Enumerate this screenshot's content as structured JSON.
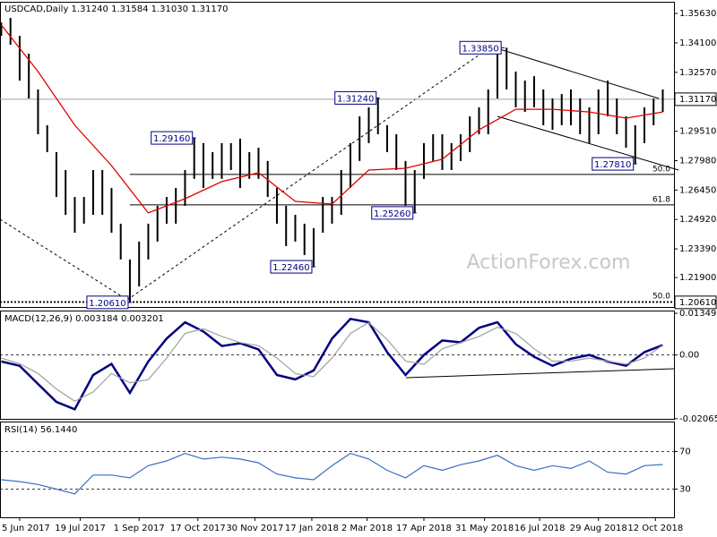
{
  "chart_data": [
    {
      "type": "ohlc",
      "title": "USDCAD,Daily  1.31240 1.31584 1.31030 1.31170",
      "watermark": "ActionForex.com",
      "color": "#000000",
      "x": [
        -10,
        -5,
        0,
        5,
        10,
        15,
        20,
        25,
        30,
        35,
        40,
        45,
        50,
        55,
        60,
        65,
        70,
        75,
        80,
        85,
        90,
        95,
        100,
        105,
        110,
        115,
        120,
        125,
        130,
        135,
        140,
        145,
        150,
        155,
        160,
        165,
        170,
        175,
        180,
        185,
        190,
        195,
        200,
        205,
        210,
        215,
        220,
        225,
        230,
        235,
        240,
        245,
        250,
        255,
        260,
        265,
        270,
        275,
        280,
        285,
        290,
        295,
        300,
        305,
        310,
        315,
        320,
        325,
        330,
        335,
        340,
        345,
        350
      ],
      "high": [
        1.3516,
        1.354,
        1.3447,
        1.3354,
        1.3168,
        1.2982,
        1.2842,
        1.2749,
        1.2609,
        1.2609,
        1.2749,
        1.2749,
        1.2656,
        1.247,
        1.2284,
        1.2377,
        1.247,
        1.2563,
        1.2609,
        1.2656,
        1.2749,
        1.2916,
        1.2889,
        1.2842,
        1.2889,
        1.2889,
        1.2912,
        1.2842,
        1.2865,
        1.2796,
        1.2656,
        1.2563,
        1.2516,
        1.247,
        1.2447,
        1.2609,
        1.2609,
        1.2749,
        1.2889,
        1.3028,
        1.3075,
        1.3124,
        1.2982,
        1.2935,
        1.2796,
        1.2749,
        1.2889,
        1.2935,
        1.2935,
        1.2889,
        1.2935,
        1.3028,
        1.3075,
        1.3168,
        1.3354,
        1.3385,
        1.3261,
        1.3214,
        1.3237,
        1.3168,
        1.3121,
        1.3144,
        1.3168,
        1.3121,
        1.3075,
        1.3168,
        1.3214,
        1.3121,
        1.3028,
        1.2982,
        1.3075,
        1.3121,
        1.3168
      ],
      "low": [
        1.3447,
        1.34,
        1.3214,
        1.3121,
        1.2935,
        1.2842,
        1.2609,
        1.2516,
        1.2423,
        1.247,
        1.2516,
        1.2516,
        1.2423,
        1.2284,
        1.2061,
        1.2144,
        1.2284,
        1.2377,
        1.247,
        1.247,
        1.2563,
        1.2703,
        1.2656,
        1.2703,
        1.2703,
        1.2749,
        1.2656,
        1.2703,
        1.2703,
        1.2609,
        1.247,
        1.2354,
        1.2377,
        1.2307,
        1.2246,
        1.2423,
        1.247,
        1.2516,
        1.2656,
        1.2796,
        1.2889,
        1.2935,
        1.2842,
        1.2749,
        1.2563,
        1.2526,
        1.2703,
        1.2796,
        1.2749,
        1.2749,
        1.2796,
        1.2842,
        1.2935,
        1.2935,
        1.3121,
        1.3168,
        1.3075,
        1.3051,
        1.3075,
        1.2982,
        1.2958,
        1.2982,
        1.2982,
        1.2935,
        1.2889,
        1.2935,
        1.3028,
        1.2935,
        1.2865,
        1.2781,
        1.2889,
        1.2982,
        1.3051
      ],
      "xlim": [
        -10.7,
        356.1
      ],
      "ylim": [
        1.2037,
        1.3619
      ],
      "yticks": [
        {
          "value": 1.3563,
          "label": "1.35630"
        },
        {
          "value": 1.341,
          "label": "1.34100"
        },
        {
          "value": 1.3257,
          "label": "1.32570"
        },
        {
          "value": 1.2951,
          "label": "1.29510"
        },
        {
          "value": 1.2798,
          "label": "1.27980"
        },
        {
          "value": 1.2645,
          "label": "1.26450"
        },
        {
          "value": 1.2492,
          "label": "1.24920"
        },
        {
          "value": 1.2339,
          "label": "1.23390"
        },
        {
          "value": 1.219,
          "label": "1.21900"
        }
      ],
      "last_price": {
        "value": 1.3117,
        "label": "1.31170"
      },
      "price_markers": [
        {
          "value": 1.2061,
          "label": "1.20610"
        }
      ],
      "ma": {
        "color": "#e00000",
        "x": [
          -10,
          10,
          30,
          50,
          70,
          90,
          110,
          130,
          150,
          170,
          190,
          210,
          230,
          250,
          270,
          290,
          310,
          330,
          350
        ],
        "values": [
          1.3503,
          1.3261,
          1.2982,
          1.2772,
          1.2526,
          1.26,
          1.2689,
          1.2735,
          1.2586,
          1.2572,
          1.2749,
          1.2758,
          1.2805,
          1.2958,
          1.3065,
          1.3065,
          1.3051,
          1.3019,
          1.3051
        ]
      },
      "annotations": [
        {
          "x": 263,
          "value": 1.3385,
          "label": "1.33850"
        },
        {
          "x": 195,
          "value": 1.3124,
          "label": "1.31240"
        },
        {
          "x": 95,
          "value": 1.2916,
          "label": "1.29160"
        },
        {
          "x": 335,
          "value": 1.2781,
          "label": "1.27810"
        },
        {
          "x": 215,
          "value": 1.2526,
          "label": "1.25260"
        },
        {
          "x": 160,
          "value": 1.2246,
          "label": "1.22460"
        },
        {
          "x": 60,
          "value": 1.2061,
          "label": "1.20610"
        }
      ],
      "levels": [
        {
          "label": "50.0",
          "value": 1.2726,
          "start": 60
        },
        {
          "label": "61.8",
          "value": 1.2568,
          "start": 60
        },
        {
          "label": "50.0",
          "value": 1.2065
        }
      ]
    },
    {
      "type": "line",
      "title": "MACD(12,26,9) 0.003184 0.003201",
      "x": [
        -10,
        0,
        10,
        20,
        30,
        40,
        50,
        60,
        70,
        80,
        90,
        100,
        110,
        120,
        130,
        140,
        150,
        160,
        170,
        180,
        190,
        200,
        210,
        220,
        230,
        240,
        250,
        260,
        270,
        280,
        290,
        300,
        310,
        320,
        330,
        340,
        350
      ],
      "series": [
        {
          "color": "#000080",
          "values": [
            -0.0021,
            -0.0035,
            -0.0094,
            -0.0152,
            -0.0176,
            -0.0065,
            -0.0029,
            -0.0123,
            -0.0021,
            0.0053,
            0.0106,
            0.0076,
            0.0029,
            0.0038,
            0.0018,
            -0.0065,
            -0.0079,
            -0.005,
            0.0053,
            0.0117,
            0.0106,
            0.0009,
            -0.0065,
            0,
            0.0047,
            0.0041,
            0.0088,
            0.0106,
            0.0035,
            -0.0006,
            -0.0035,
            -0.0012,
            0,
            -0.0021,
            -0.0035,
            0.0009,
            0.0032
          ]
        },
        {
          "color": "#a0a0a0",
          "values": [
            -0.001,
            -0.0028,
            -0.006,
            -0.011,
            -0.015,
            -0.012,
            -0.006,
            -0.009,
            -0.008,
            -0.001,
            0.007,
            0.0085,
            0.006,
            0.004,
            0.003,
            -0.001,
            -0.006,
            -0.007,
            -0.001,
            0.007,
            0.0105,
            0.005,
            -0.002,
            -0.003,
            0.002,
            0.004,
            0.006,
            0.009,
            0.007,
            0.002,
            -0.002,
            -0.002,
            -0.001,
            -0.002,
            -0.003,
            -0.001,
            0.0032
          ]
        }
      ],
      "xlim": [
        -10.7,
        356.1
      ],
      "ylim": [
        -0.0207,
        0.0141
      ],
      "yticks": [
        0.01349,
        {
          "value": 0,
          "label": "0.00"
        },
        -0.020652
      ],
      "levels": [
        0
      ]
    },
    {
      "type": "line",
      "title": "RSI(14) 56.1440",
      "x": [
        -10,
        0,
        10,
        20,
        30,
        40,
        50,
        60,
        70,
        80,
        90,
        100,
        110,
        120,
        130,
        140,
        150,
        160,
        170,
        180,
        190,
        200,
        210,
        220,
        230,
        240,
        250,
        260,
        270,
        280,
        290,
        300,
        310,
        320,
        330,
        340,
        350
      ],
      "series": [
        {
          "color": "#3a6fc4",
          "values": [
            40,
            38,
            35,
            30,
            25,
            45,
            45,
            42,
            55,
            60,
            68,
            62,
            64,
            62,
            58,
            46,
            42,
            40,
            55,
            68,
            62,
            50,
            42,
            55,
            50,
            56,
            60,
            66,
            55,
            50,
            55,
            52,
            60,
            48,
            46,
            55,
            56.144
          ]
        }
      ],
      "xlim": [
        -10.7,
        356.1
      ],
      "ylim": [
        0,
        100
      ],
      "yticks": [
        70,
        30
      ],
      "levels": [
        70,
        30
      ],
      "xticks": [
        {
          "value": 0,
          "label": "5 Jun 2017"
        },
        {
          "value": 33,
          "label": "19 Jul 2017"
        },
        {
          "value": 65,
          "label": "1 Sep 2017"
        },
        {
          "value": 97,
          "label": "17 Oct 2017"
        },
        {
          "value": 128,
          "label": "30 Nov 2017"
        },
        {
          "value": 159,
          "label": "17 Jan 2018"
        },
        {
          "value": 189,
          "label": "2 Mar 2018"
        },
        {
          "value": 220,
          "label": "17 Apr 2018"
        },
        {
          "value": 253,
          "label": "31 May 2018"
        },
        {
          "value": 283,
          "label": "16 Jul 2018"
        },
        {
          "value": 315,
          "label": "29 Aug 2018"
        },
        {
          "value": 346,
          "label": "12 Oct 2018"
        }
      ]
    }
  ]
}
